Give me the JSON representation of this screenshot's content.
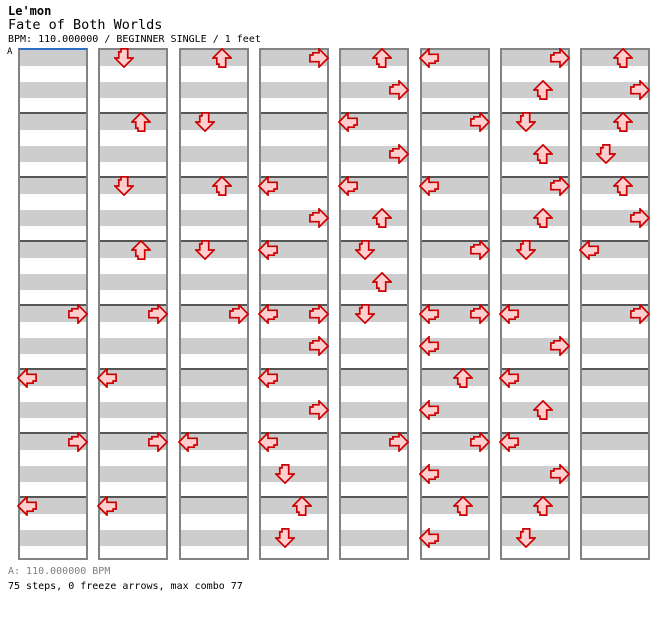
{
  "header": {
    "artist": "Le'mon",
    "title": "Fate of Both Worlds",
    "meta": "BPM: 110.000000 / BEGINNER SINGLE / 1 feet"
  },
  "footer": {
    "bpm_line": "A: 110.000000 BPM",
    "stats_line": "75 steps, 0 freeze arrows, max combo 77"
  },
  "colors": {
    "stripe": "#cdcdcd",
    "column_border": "#838383",
    "measure_separator": "#575757",
    "section_line_blue": "#2d6fc2",
    "arrow_outline": "#cc0000",
    "arrow_fill": "#ffcfcf",
    "footer_gray": "#808080"
  },
  "chart_data": {
    "type": "ddr-step-chart",
    "section_label": "A",
    "bpm": 110.0,
    "difficulty": "BEGINNER SINGLE",
    "feet": 1,
    "steps": 75,
    "freeze_arrows": 0,
    "max_combo": 77,
    "columns": 8,
    "measures_per_column": 8,
    "beats_per_measure": 4,
    "lanes": [
      "left",
      "down",
      "up",
      "right"
    ],
    "arrow_format": [
      "column",
      "measure",
      "beat",
      "direction"
    ],
    "arrows": [
      [
        0,
        4,
        0,
        "right"
      ],
      [
        0,
        5,
        0,
        "left"
      ],
      [
        0,
        6,
        0,
        "right"
      ],
      [
        0,
        7,
        0,
        "left"
      ],
      [
        1,
        0,
        0,
        "down"
      ],
      [
        1,
        1,
        0,
        "up"
      ],
      [
        1,
        2,
        0,
        "down"
      ],
      [
        1,
        3,
        0,
        "up"
      ],
      [
        1,
        4,
        0,
        "right"
      ],
      [
        1,
        5,
        0,
        "left"
      ],
      [
        1,
        6,
        0,
        "right"
      ],
      [
        1,
        7,
        0,
        "left"
      ],
      [
        2,
        0,
        0,
        "up"
      ],
      [
        2,
        1,
        0,
        "down"
      ],
      [
        2,
        2,
        0,
        "up"
      ],
      [
        2,
        3,
        0,
        "down"
      ],
      [
        2,
        4,
        0,
        "right"
      ],
      [
        2,
        6,
        0,
        "left"
      ],
      [
        3,
        0,
        0,
        "right"
      ],
      [
        3,
        2,
        0,
        "left"
      ],
      [
        3,
        2,
        2,
        "right"
      ],
      [
        3,
        3,
        0,
        "left"
      ],
      [
        3,
        4,
        0,
        "left"
      ],
      [
        3,
        4,
        0,
        "right"
      ],
      [
        3,
        4,
        2,
        "right"
      ],
      [
        3,
        5,
        0,
        "left"
      ],
      [
        3,
        5,
        2,
        "right"
      ],
      [
        3,
        6,
        0,
        "left"
      ],
      [
        3,
        6,
        2,
        "down"
      ],
      [
        3,
        7,
        0,
        "up"
      ],
      [
        3,
        7,
        2,
        "down"
      ],
      [
        4,
        0,
        0,
        "up"
      ],
      [
        4,
        0,
        2,
        "right"
      ],
      [
        4,
        1,
        0,
        "left"
      ],
      [
        4,
        1,
        2,
        "right"
      ],
      [
        4,
        2,
        0,
        "left"
      ],
      [
        4,
        2,
        2,
        "up"
      ],
      [
        4,
        3,
        0,
        "down"
      ],
      [
        4,
        3,
        2,
        "up"
      ],
      [
        4,
        4,
        0,
        "down"
      ],
      [
        4,
        6,
        0,
        "right"
      ],
      [
        5,
        0,
        0,
        "left"
      ],
      [
        5,
        1,
        0,
        "right"
      ],
      [
        5,
        2,
        0,
        "left"
      ],
      [
        5,
        3,
        0,
        "right"
      ],
      [
        5,
        4,
        0,
        "left"
      ],
      [
        5,
        4,
        0,
        "right"
      ],
      [
        5,
        4,
        2,
        "left"
      ],
      [
        5,
        5,
        0,
        "up"
      ],
      [
        5,
        5,
        2,
        "left"
      ],
      [
        5,
        6,
        0,
        "right"
      ],
      [
        5,
        6,
        2,
        "left"
      ],
      [
        5,
        7,
        0,
        "up"
      ],
      [
        5,
        7,
        2,
        "left"
      ],
      [
        6,
        0,
        0,
        "right"
      ],
      [
        6,
        0,
        2,
        "up"
      ],
      [
        6,
        1,
        0,
        "down"
      ],
      [
        6,
        1,
        2,
        "up"
      ],
      [
        6,
        2,
        0,
        "right"
      ],
      [
        6,
        2,
        2,
        "up"
      ],
      [
        6,
        3,
        0,
        "down"
      ],
      [
        6,
        4,
        0,
        "left"
      ],
      [
        6,
        4,
        2,
        "right"
      ],
      [
        6,
        5,
        0,
        "left"
      ],
      [
        6,
        5,
        2,
        "up"
      ],
      [
        6,
        6,
        0,
        "left"
      ],
      [
        6,
        6,
        2,
        "right"
      ],
      [
        6,
        7,
        0,
        "up"
      ],
      [
        6,
        7,
        2,
        "down"
      ],
      [
        7,
        0,
        0,
        "up"
      ],
      [
        7,
        0,
        2,
        "right"
      ],
      [
        7,
        1,
        0,
        "up"
      ],
      [
        7,
        1,
        2,
        "down"
      ],
      [
        7,
        2,
        0,
        "up"
      ],
      [
        7,
        2,
        2,
        "right"
      ],
      [
        7,
        3,
        0,
        "left"
      ],
      [
        7,
        4,
        0,
        "right"
      ]
    ]
  }
}
